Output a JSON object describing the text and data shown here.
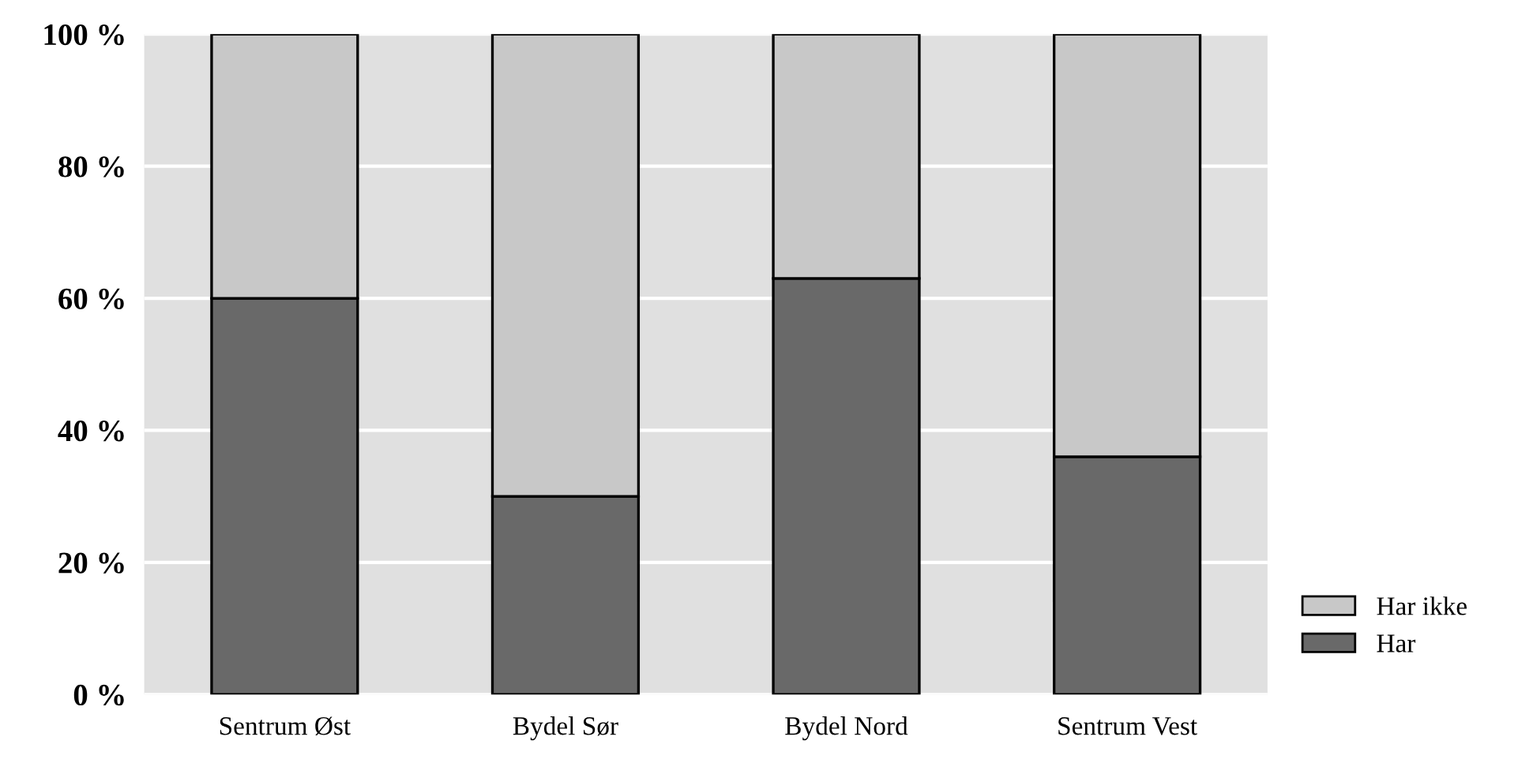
{
  "chart_data": {
    "type": "bar",
    "stacked": true,
    "categories": [
      "Sentrum Øst",
      "Bydel Sør",
      "Bydel Nord",
      "Sentrum Vest"
    ],
    "series": [
      {
        "name": "Har",
        "color": "#696969",
        "values": [
          60,
          30,
          63,
          36
        ]
      },
      {
        "name": "Har ikke",
        "color": "#c8c8c8",
        "values": [
          40,
          70,
          37,
          64
        ]
      }
    ],
    "ylim": [
      0,
      100
    ],
    "yticks": [
      {
        "value": 0,
        "label": "0 %"
      },
      {
        "value": 20,
        "label": "20 %"
      },
      {
        "value": 40,
        "label": "40 %"
      },
      {
        "value": 60,
        "label": "60 %"
      },
      {
        "value": 80,
        "label": "80 %"
      },
      {
        "value": 100,
        "label": "100 %"
      }
    ],
    "grid": "y",
    "legend": "right"
  }
}
